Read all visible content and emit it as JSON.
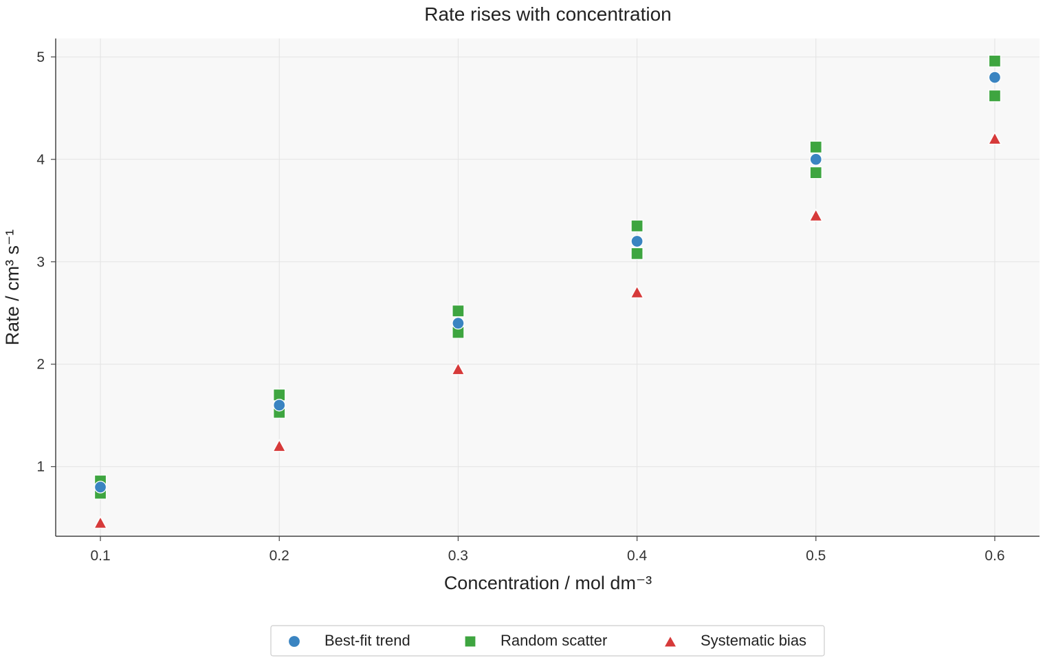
{
  "chart_data": {
    "type": "scatter",
    "title": "Rate rises with concentration",
    "xlabel": "Concentration / mol dm⁻³",
    "ylabel": "Rate / cm³ s⁻¹",
    "xlim": [
      0.075,
      0.625
    ],
    "ylim": [
      0.32,
      5.18
    ],
    "xticks": [
      0.1,
      0.2,
      0.3,
      0.4,
      0.5,
      0.6
    ],
    "xtick_labels": [
      "0.1",
      "0.2",
      "0.3",
      "0.4",
      "0.5",
      "0.6"
    ],
    "yticks": [
      1,
      2,
      3,
      4,
      5
    ],
    "ytick_labels": [
      "1",
      "2",
      "3",
      "4",
      "5"
    ],
    "grid": true,
    "legend_position": "bottom-center",
    "series": [
      {
        "name": "Best-fit trend",
        "marker": "circle",
        "color": "#3a84c1",
        "points": [
          {
            "x": 0.1,
            "y": 0.8
          },
          {
            "x": 0.2,
            "y": 1.6
          },
          {
            "x": 0.3,
            "y": 2.4
          },
          {
            "x": 0.4,
            "y": 3.2
          },
          {
            "x": 0.5,
            "y": 4.0
          },
          {
            "x": 0.6,
            "y": 4.8
          }
        ]
      },
      {
        "name": "Random scatter",
        "marker": "square",
        "color": "#3ea540",
        "points": [
          {
            "x": 0.1,
            "y": 0.86
          },
          {
            "x": 0.1,
            "y": 0.74
          },
          {
            "x": 0.2,
            "y": 1.7
          },
          {
            "x": 0.2,
            "y": 1.53
          },
          {
            "x": 0.3,
            "y": 2.52
          },
          {
            "x": 0.3,
            "y": 2.31
          },
          {
            "x": 0.4,
            "y": 3.35
          },
          {
            "x": 0.4,
            "y": 3.08
          },
          {
            "x": 0.5,
            "y": 4.12
          },
          {
            "x": 0.5,
            "y": 3.87
          },
          {
            "x": 0.6,
            "y": 4.96
          },
          {
            "x": 0.6,
            "y": 4.62
          }
        ]
      },
      {
        "name": "Systematic bias",
        "marker": "triangle",
        "color": "#d63a3a",
        "points": [
          {
            "x": 0.1,
            "y": 0.45
          },
          {
            "x": 0.2,
            "y": 1.2
          },
          {
            "x": 0.3,
            "y": 1.95
          },
          {
            "x": 0.4,
            "y": 2.7
          },
          {
            "x": 0.5,
            "y": 3.45
          },
          {
            "x": 0.6,
            "y": 4.2
          }
        ]
      }
    ]
  },
  "colors": {
    "plot_background": "#f8f8f8",
    "grid": "#e3e3e3",
    "axis": "#444444"
  }
}
